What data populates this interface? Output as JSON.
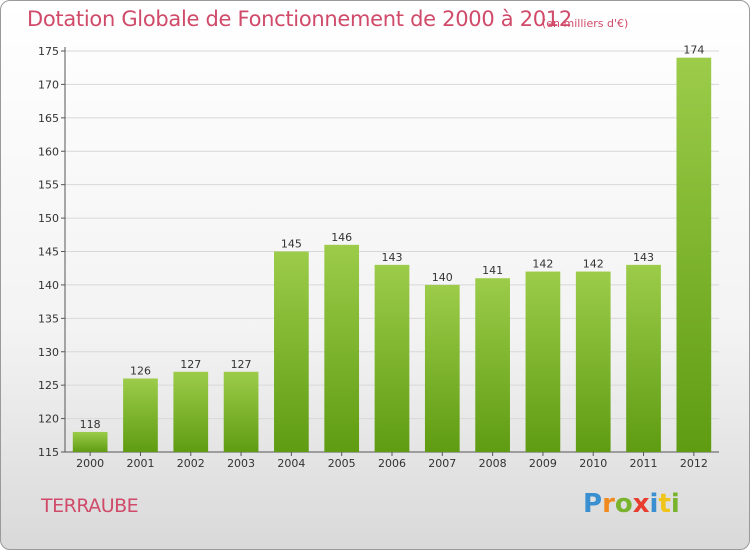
{
  "title": "Dotation Globale de Fonctionnement de 2000 à 2012",
  "subtitle": "(en milliers d'€)",
  "commune": "TERRAUBE",
  "logo": {
    "letters": [
      "P",
      "r",
      "o",
      "x",
      "i",
      "t",
      "i"
    ],
    "colors": [
      "#3a8fd0",
      "#f08a1e",
      "#7ab32e",
      "#e83d2f",
      "#3a8fd0",
      "#f0c419",
      "#7ab32e"
    ]
  },
  "colors": {
    "bar_top": "#9ccc4a",
    "bar_bottom": "#5f9c12",
    "grid": "#d8d8d8",
    "title": "#d04a6a"
  },
  "chart_data": {
    "type": "bar",
    "categories": [
      "2000",
      "2001",
      "2002",
      "2003",
      "2004",
      "2005",
      "2006",
      "2007",
      "2008",
      "2009",
      "2010",
      "2011",
      "2012"
    ],
    "values": [
      118,
      126,
      127,
      127,
      145,
      146,
      143,
      140,
      141,
      142,
      142,
      143,
      174
    ],
    "ylim": [
      115,
      175
    ],
    "yticks": [
      115,
      120,
      125,
      130,
      135,
      140,
      145,
      150,
      155,
      160,
      165,
      170,
      175
    ],
    "grid": true
  }
}
